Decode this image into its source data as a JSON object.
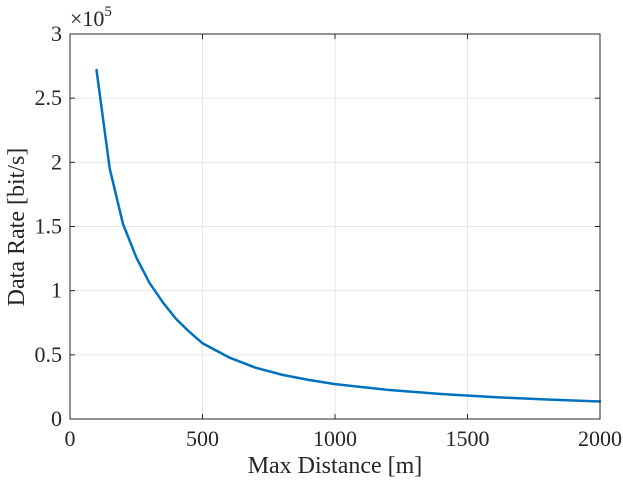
{
  "chart_data": {
    "type": "line",
    "xlabel": "Max Distance [m]",
    "ylabel": "Data Rate [bit/s]",
    "xlim": [
      0,
      2000
    ],
    "ylim": [
      0,
      3
    ],
    "y_multiplier": {
      "base": "×10",
      "exponent": "5"
    },
    "xticks": [
      "0",
      "500",
      "1000",
      "1500",
      "2000"
    ],
    "yticks": [
      "0",
      "0.5",
      "1",
      "1.5",
      "2",
      "2.5",
      "3"
    ],
    "grid": true,
    "line_color": "#0072BD",
    "series": [
      {
        "x": [
          100,
          150,
          200,
          250,
          300,
          350,
          400,
          450,
          500,
          600,
          700,
          800,
          900,
          1000,
          1200,
          1400,
          1600,
          1800,
          2000
        ],
        "y": [
          2.72,
          1.95,
          1.52,
          1.26,
          1.06,
          0.91,
          0.78,
          0.68,
          0.59,
          0.48,
          0.4,
          0.345,
          0.305,
          0.272,
          0.227,
          0.195,
          0.17,
          0.152,
          0.136
        ]
      }
    ]
  }
}
